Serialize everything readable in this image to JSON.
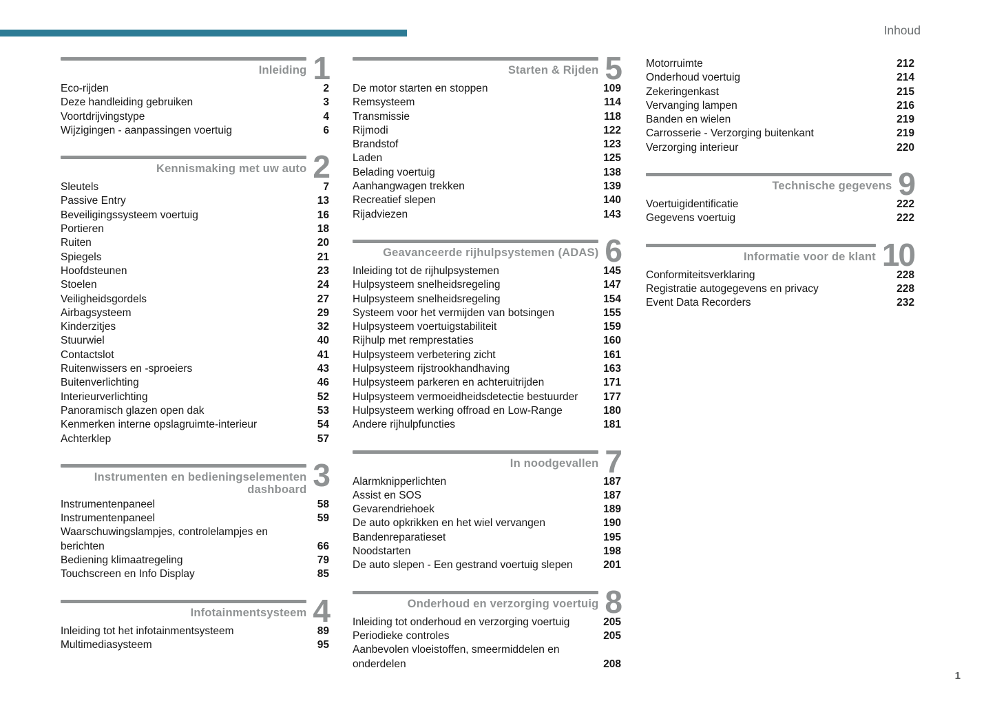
{
  "page": {
    "header_label": "Inhoud",
    "page_number": "1",
    "accent_color": "#2d7b95",
    "section_gray": "#8f9293"
  },
  "columns": [
    {
      "sections": [
        {
          "number": "1",
          "title": "Inleiding",
          "entries": [
            {
              "label": "Eco-rijden",
              "page": "2"
            },
            {
              "label": "Deze handleiding gebruiken",
              "page": "3"
            },
            {
              "label": "Voortdrijvingstype",
              "page": "4"
            },
            {
              "label": "Wijzigingen - aanpassingen voertuig",
              "page": "6"
            }
          ]
        },
        {
          "number": "2",
          "title": "Kennismaking met uw auto",
          "entries": [
            {
              "label": "Sleutels",
              "page": "7"
            },
            {
              "label": "Passive Entry",
              "page": "13"
            },
            {
              "label": "Beveiligingssysteem voertuig",
              "page": "16"
            },
            {
              "label": "Portieren",
              "page": "18"
            },
            {
              "label": "Ruiten",
              "page": "20"
            },
            {
              "label": "Spiegels",
              "page": "21"
            },
            {
              "label": "Hoofdsteunen",
              "page": "23"
            },
            {
              "label": "Stoelen",
              "page": "24"
            },
            {
              "label": "Veiligheidsgordels",
              "page": "27"
            },
            {
              "label": "Airbagsysteem",
              "page": "29"
            },
            {
              "label": "Kinderzitjes",
              "page": "32"
            },
            {
              "label": "Stuurwiel",
              "page": "40"
            },
            {
              "label": "Contactslot",
              "page": "41"
            },
            {
              "label": "Ruitenwissers en -sproeiers",
              "page": "43"
            },
            {
              "label": "Buitenverlichting",
              "page": "46"
            },
            {
              "label": "Interieurverlichting",
              "page": "52"
            },
            {
              "label": "Panoramisch glazen open dak",
              "page": "53"
            },
            {
              "label": "Kenmerken interne opslagruimte-interieur",
              "page": "54"
            },
            {
              "label": "Achterklep",
              "page": "57"
            }
          ]
        },
        {
          "number": "3",
          "title": "Instrumenten en bedieningselementen",
          "title2": "dashboard",
          "entries": [
            {
              "label": "Instrumentenpaneel",
              "page": "58"
            },
            {
              "label": "Instrumentenpaneel",
              "page": "59"
            },
            {
              "label": "Waarschuwingslampjes, controlelampjes en berichten",
              "page": "66"
            },
            {
              "label": "Bediening klimaatregeling",
              "page": "79"
            },
            {
              "label": "Touchscreen en Info Display",
              "page": "85"
            }
          ]
        },
        {
          "number": "4",
          "title": "Infotainmentsysteem",
          "entries": [
            {
              "label": "Inleiding tot het infotainmentsysteem",
              "page": "89"
            },
            {
              "label": "Multimediasysteem",
              "page": "95"
            }
          ]
        }
      ]
    },
    {
      "sections": [
        {
          "number": "5",
          "title": "Starten & Rijden",
          "entries": [
            {
              "label": "De motor starten en stoppen",
              "page": "109"
            },
            {
              "label": "Remsysteem",
              "page": "114"
            },
            {
              "label": "Transmissie",
              "page": "118"
            },
            {
              "label": "Rijmodi",
              "page": "122"
            },
            {
              "label": "Brandstof",
              "page": "123"
            },
            {
              "label": "Laden",
              "page": "125"
            },
            {
              "label": "Belading voertuig",
              "page": "138"
            },
            {
              "label": "Aanhangwagen trekken",
              "page": "139"
            },
            {
              "label": "Recreatief slepen",
              "page": "140"
            },
            {
              "label": "Rijadviezen",
              "page": "143"
            }
          ]
        },
        {
          "number": "6",
          "title": "Geavanceerde rijhulpsystemen (ADAS)",
          "entries": [
            {
              "label": "Inleiding tot de rijhulpsystemen",
              "page": "145"
            },
            {
              "label": "Hulpsysteem snelheidsregeling",
              "page": "147"
            },
            {
              "label": "Hulpsysteem snelheidsregeling",
              "page": "154"
            },
            {
              "label": "Systeem voor het vermijden van botsingen",
              "page": "155"
            },
            {
              "label": "Hulpsysteem voertuigstabiliteit",
              "page": "159"
            },
            {
              "label": "Rijhulp met remprestaties",
              "page": "160"
            },
            {
              "label": "Hulpsysteem verbetering zicht",
              "page": "161"
            },
            {
              "label": "Hulpsysteem rijstrookhandhaving",
              "page": "163"
            },
            {
              "label": "Hulpsysteem parkeren en achteruitrijden",
              "page": "171"
            },
            {
              "label": "Hulpsysteem vermoeidheidsdetectie bestuurder",
              "page": "177"
            },
            {
              "label": "Hulpsysteem werking offroad en Low-Range",
              "page": "180"
            },
            {
              "label": "Andere rijhulpfuncties",
              "page": "181"
            }
          ]
        },
        {
          "number": "7",
          "title": "In noodgevallen",
          "entries": [
            {
              "label": "Alarmknipperlichten",
              "page": "187"
            },
            {
              "label": "Assist en SOS",
              "page": "187"
            },
            {
              "label": "Gevarendriehoek",
              "page": "189"
            },
            {
              "label": "De auto opkrikken en het wiel vervangen",
              "page": "190"
            },
            {
              "label": "Bandenreparatieset",
              "page": "195"
            },
            {
              "label": "Noodstarten",
              "page": "198"
            },
            {
              "label": "De auto slepen - Een gestrand voertuig slepen",
              "page": "201"
            }
          ]
        },
        {
          "number": "8",
          "title": "Onderhoud en verzorging voertuig",
          "entries": [
            {
              "label": "Inleiding tot onderhoud en verzorging voertuig",
              "page": "205"
            },
            {
              "label": "Periodieke controles",
              "page": "205"
            },
            {
              "label": "Aanbevolen vloeistoffen, smeermiddelen en onderdelen",
              "page": "208"
            }
          ]
        }
      ]
    },
    {
      "sections": [
        {
          "continuation": true,
          "entries": [
            {
              "label": "Motorruimte",
              "page": "212"
            },
            {
              "label": "Onderhoud voertuig",
              "page": "214"
            },
            {
              "label": "Zekeringenkast",
              "page": "215"
            },
            {
              "label": "Vervanging lampen",
              "page": "216"
            },
            {
              "label": "Banden en wielen",
              "page": "219"
            },
            {
              "label": "Carrosserie - Verzorging buitenkant",
              "page": "219"
            },
            {
              "label": "Verzorging interieur",
              "page": "220"
            }
          ]
        },
        {
          "number": "9",
          "title": "Technische gegevens",
          "entries": [
            {
              "label": "Voertuigidentificatie",
              "page": "222"
            },
            {
              "label": "Gegevens voertuig",
              "page": "222"
            }
          ]
        },
        {
          "number": "10",
          "title": "Informatie voor de klant",
          "entries": [
            {
              "label": "Conformiteitsverklaring",
              "page": "228"
            },
            {
              "label": "Registratie autogegevens en privacy",
              "page": "228"
            },
            {
              "label": "Event Data Recorders",
              "page": "232"
            }
          ]
        }
      ]
    }
  ]
}
